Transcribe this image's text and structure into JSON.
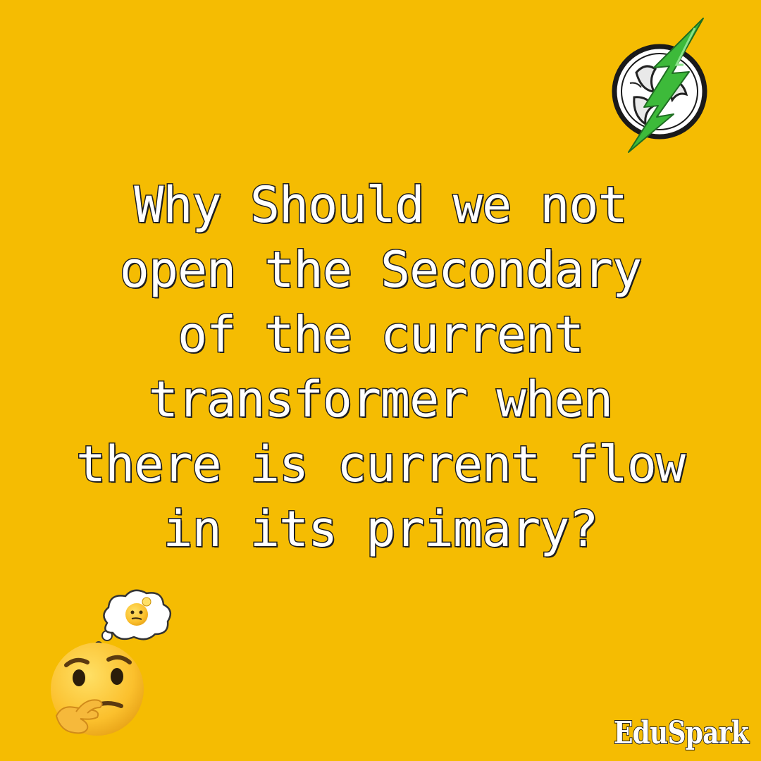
{
  "background_color": "#F5BC02",
  "logo": {
    "icon": "lightning-bolt-claw-logo-icon",
    "bolt_color": "#3DBA3A"
  },
  "question": {
    "lines": [
      "Why Should we not",
      "open the Secondary",
      "of the current",
      "transformer when",
      "there is current flow",
      "in its primary?"
    ]
  },
  "emoji": {
    "icon": "thinking-face-emoji-icon",
    "thought_bubble_icon": "thought-bubble-icon"
  },
  "brand": {
    "name": "EduSpark"
  }
}
